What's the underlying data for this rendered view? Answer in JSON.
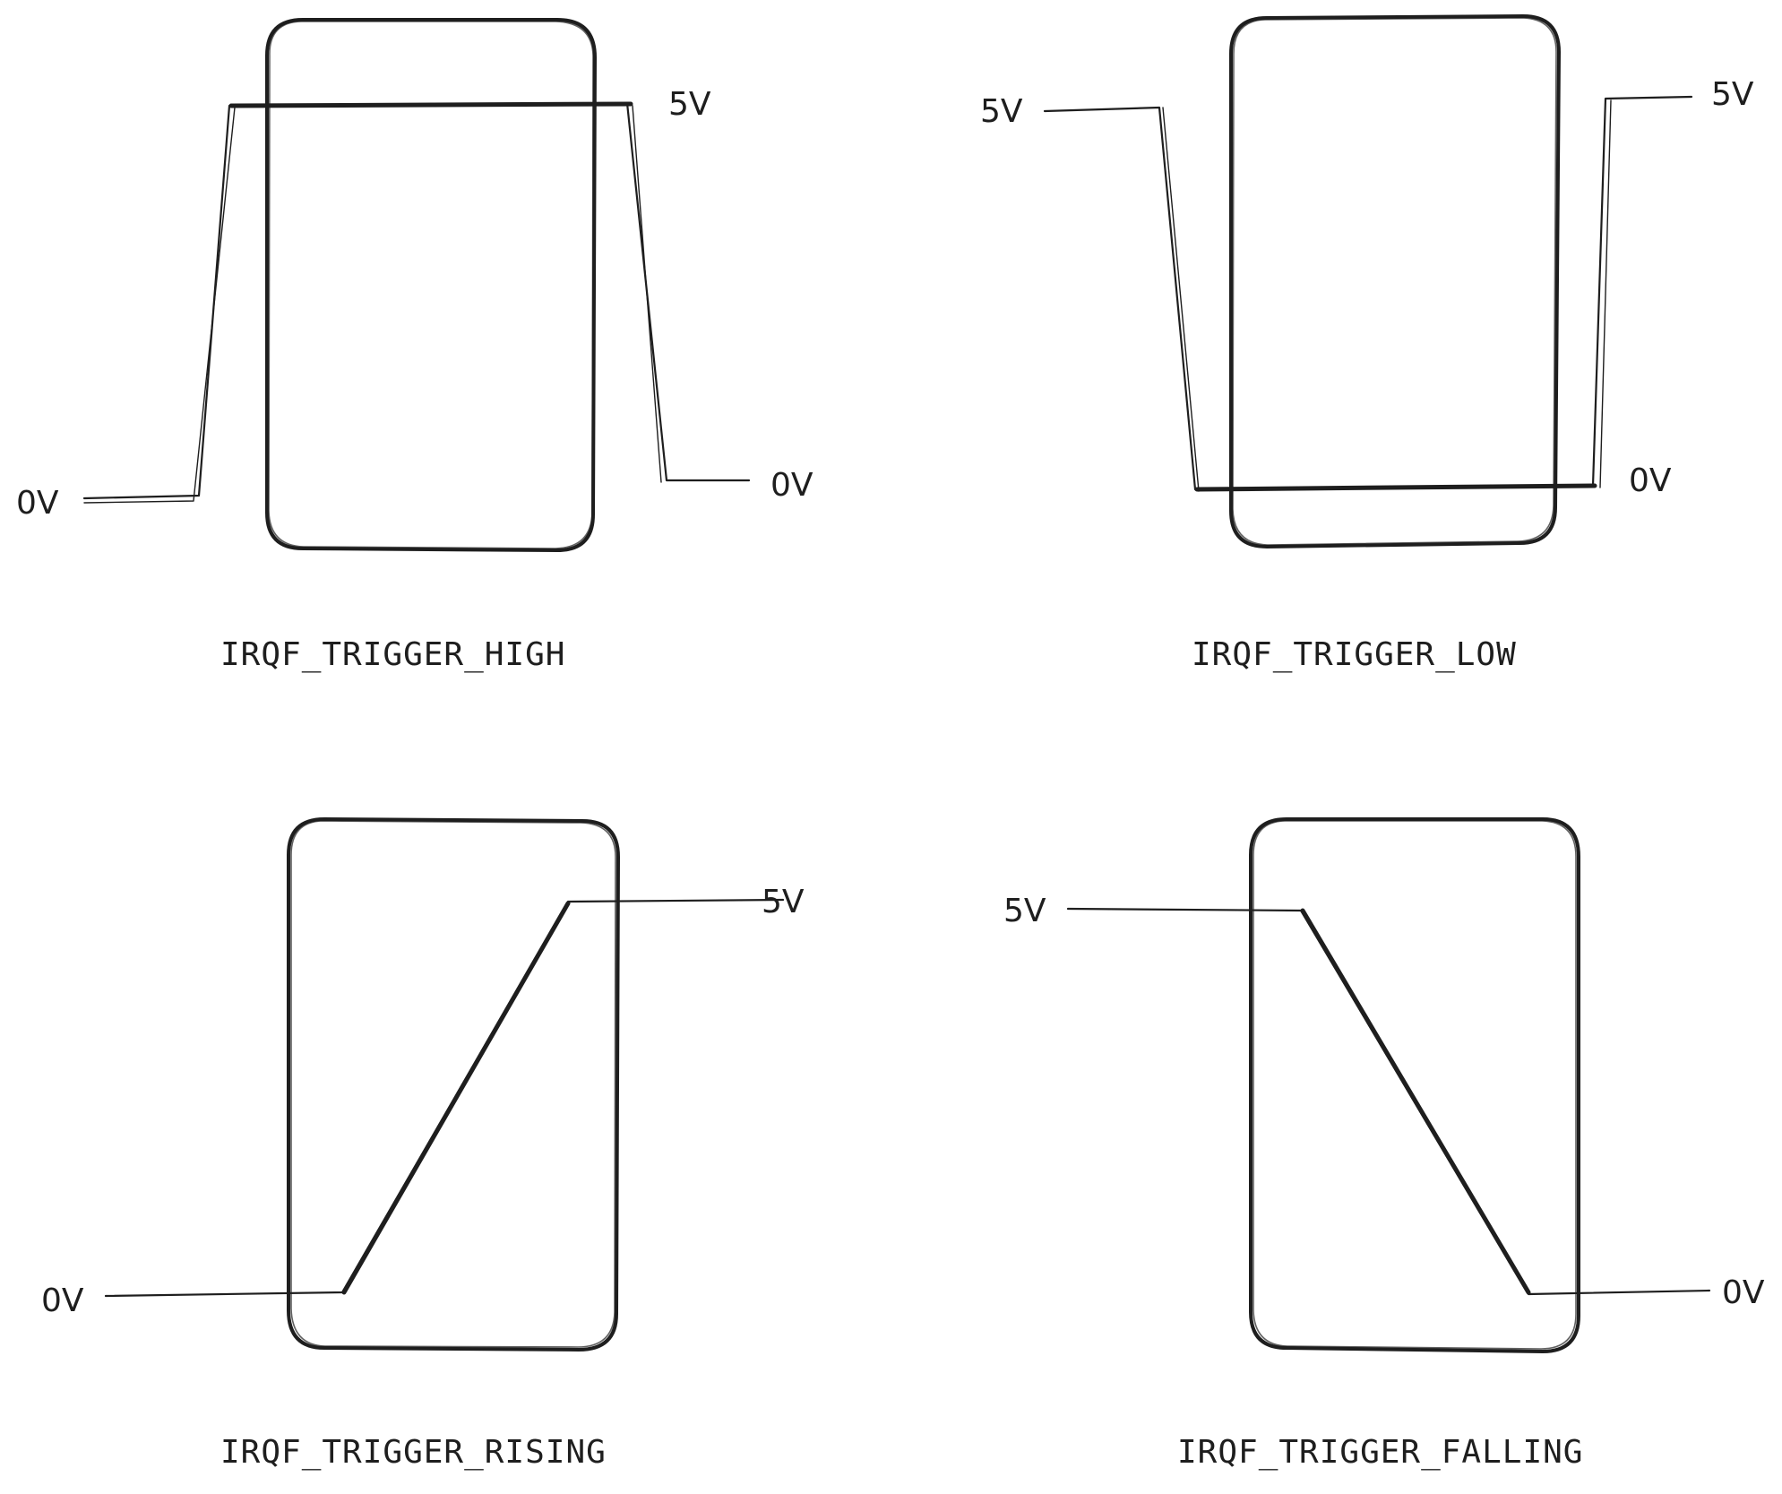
{
  "panels": [
    {
      "id": "high",
      "caption": "IRQF_TRIGGER_HIGH",
      "low_label": "0V",
      "high_label": "5V",
      "label_after": "0V"
    },
    {
      "id": "low",
      "caption": "IRQF_TRIGGER_LOW",
      "high_label": "5V",
      "label_after": "5V",
      "low_label": "0V"
    },
    {
      "id": "rising",
      "caption": "IRQF_TRIGGER_RISING",
      "low_label": "0V",
      "high_label": "5V"
    },
    {
      "id": "falling",
      "caption": "IRQF_TRIGGER_FALLING",
      "high_label": "5V",
      "low_label": "0V"
    }
  ]
}
